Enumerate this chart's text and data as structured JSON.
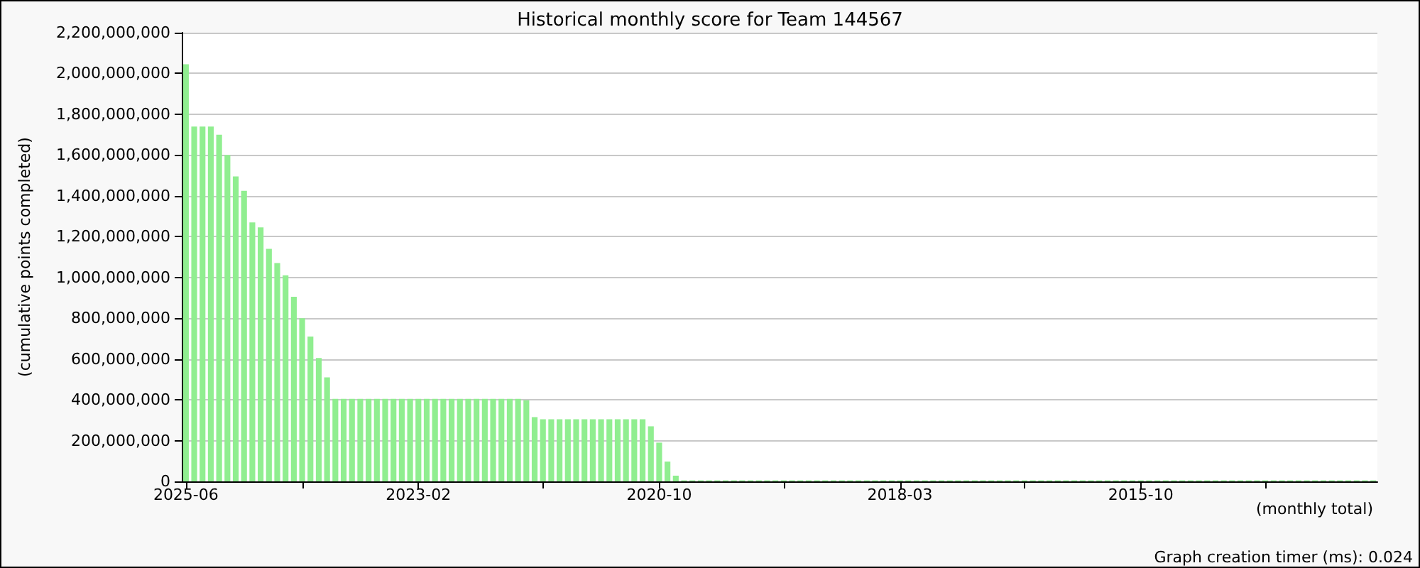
{
  "chart_data": {
    "type": "bar",
    "title": "Historical monthly score for Team 144567",
    "ylabel": "(cumulative points completed)",
    "xlabel": "(monthly total)",
    "annotations": [
      "Graph creation timer (ms): 0.024"
    ],
    "categories": [
      "2025-06",
      null,
      null,
      null,
      null,
      null,
      null,
      null,
      null,
      null,
      null,
      null,
      null,
      null,
      null,
      null,
      null,
      null,
      null,
      null,
      null,
      null,
      null,
      null,
      null,
      null,
      null,
      null,
      "2023-02",
      null,
      null,
      null,
      null,
      null,
      null,
      null,
      null,
      null,
      null,
      null,
      null,
      null,
      null,
      null,
      null,
      null,
      null,
      null,
      null,
      null,
      null,
      null,
      null,
      null,
      null,
      null,
      null,
      "2020-10",
      null,
      null,
      null,
      null,
      null,
      null,
      null,
      null,
      null,
      null,
      null,
      null,
      null,
      null,
      null,
      null,
      null,
      null,
      null,
      null,
      null,
      null,
      null,
      null,
      null,
      null,
      null,
      null,
      "2018-03",
      null,
      null,
      null,
      null,
      null,
      null,
      null,
      null,
      null,
      null,
      null,
      null,
      null,
      null,
      null,
      null,
      null,
      null,
      null,
      null,
      null,
      null,
      null,
      null,
      null,
      null,
      null,
      null,
      "2015-10",
      null,
      null,
      null,
      null,
      null,
      null,
      null,
      null,
      null,
      null,
      null,
      null,
      null,
      null,
      null,
      null,
      null,
      null,
      null,
      null,
      null,
      null,
      null,
      null,
      null,
      null,
      null,
      null
    ],
    "values": [
      2045000000,
      1740000000,
      1740000000,
      1740000000,
      1700000000,
      1600000000,
      1495000000,
      1425000000,
      1270000000,
      1245000000,
      1140000000,
      1070000000,
      1010000000,
      905000000,
      800000000,
      710000000,
      605000000,
      510000000,
      405000000,
      405000000,
      405000000,
      405000000,
      405000000,
      405000000,
      405000000,
      405000000,
      405000000,
      405000000,
      405000000,
      405000000,
      405000000,
      405000000,
      405000000,
      405000000,
      405000000,
      405000000,
      405000000,
      405000000,
      405000000,
      405000000,
      405000000,
      398000000,
      315000000,
      305000000,
      305000000,
      305000000,
      305000000,
      305000000,
      305000000,
      305000000,
      305000000,
      305000000,
      305000000,
      305000000,
      305000000,
      305000000,
      270000000,
      190000000,
      97000000,
      28000000,
      5000000,
      5000000,
      5000000,
      5000000,
      5000000,
      5000000,
      5000000,
      5000000,
      5000000,
      5000000,
      5000000,
      5000000,
      5000000,
      5000000,
      5000000,
      5000000,
      5000000,
      5000000,
      5000000,
      5000000,
      5000000,
      5000000,
      5000000,
      5000000,
      5000000,
      5000000,
      5000000,
      5000000,
      5000000,
      5000000,
      5000000,
      5000000,
      5000000,
      5000000,
      5000000,
      5000000,
      5000000,
      5000000,
      5000000,
      5000000,
      5000000,
      5000000,
      5000000,
      5000000,
      5000000,
      5000000,
      5000000,
      5000000,
      5000000,
      5000000,
      5000000,
      5000000,
      5000000,
      5000000,
      5000000,
      5000000,
      5000000,
      5000000,
      5000000,
      5000000,
      5000000,
      5000000,
      5000000,
      5000000,
      5000000,
      5000000,
      5000000,
      5000000,
      5000000,
      5000000,
      5000000,
      5000000,
      5000000,
      5000000,
      5000000,
      5000000,
      5000000,
      5000000,
      5000000,
      5000000,
      5000000,
      5000000,
      5000000,
      5000000
    ],
    "color": "#90ee90",
    "ylim": [
      0,
      2200000000
    ],
    "yticks": [
      0,
      {
        "value": 200000000,
        "label": "200,000,000"
      },
      {
        "value": 400000000,
        "label": "400,000,000"
      },
      {
        "value": 600000000,
        "label": "600,000,000"
      },
      {
        "value": 800000000,
        "label": "800,000,000"
      },
      {
        "value": 1000000000,
        "label": "1,000,000,000"
      },
      {
        "value": 1200000000,
        "label": "1,200,000,000"
      },
      {
        "value": 1400000000,
        "label": "1,400,000,000"
      },
      {
        "value": 1600000000,
        "label": "1,600,000,000"
      },
      {
        "value": 1800000000,
        "label": "1,800,000,000"
      },
      {
        "value": 2000000000,
        "label": "2,000,000,000"
      },
      {
        "value": 2200000000,
        "label": "2,200,000,000"
      }
    ],
    "grid": "y"
  }
}
